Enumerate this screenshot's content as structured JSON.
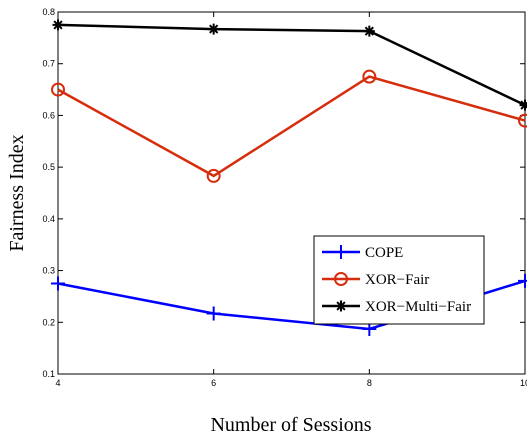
{
  "chart_data": {
    "type": "line",
    "title": "",
    "xlabel": "Number of Sessions",
    "ylabel": "Fairness Index",
    "xlim": [
      4,
      10
    ],
    "ylim": [
      0.1,
      0.8
    ],
    "xticks": [
      "4",
      "6",
      "8",
      "10"
    ],
    "yticks": [
      "0.1",
      "0.2",
      "0.3",
      "0.4",
      "0.5",
      "0.6",
      "0.7",
      "0.8"
    ],
    "grid": false,
    "legend_position": "center-right",
    "x": [
      4,
      6,
      8,
      10
    ],
    "series": [
      {
        "name": "COPE",
        "values": [
          0.275,
          0.217,
          0.187,
          0.28
        ],
        "color": "#0000ff",
        "marker": "plus"
      },
      {
        "name": "XOR−Fair",
        "values": [
          0.65,
          0.483,
          0.675,
          0.59
        ],
        "color": "#d62d0c",
        "marker": "circle"
      },
      {
        "name": "XOR−Multi−Fair",
        "values": [
          0.775,
          0.767,
          0.763,
          0.62
        ],
        "color": "#000000",
        "marker": "asterisk"
      }
    ]
  }
}
